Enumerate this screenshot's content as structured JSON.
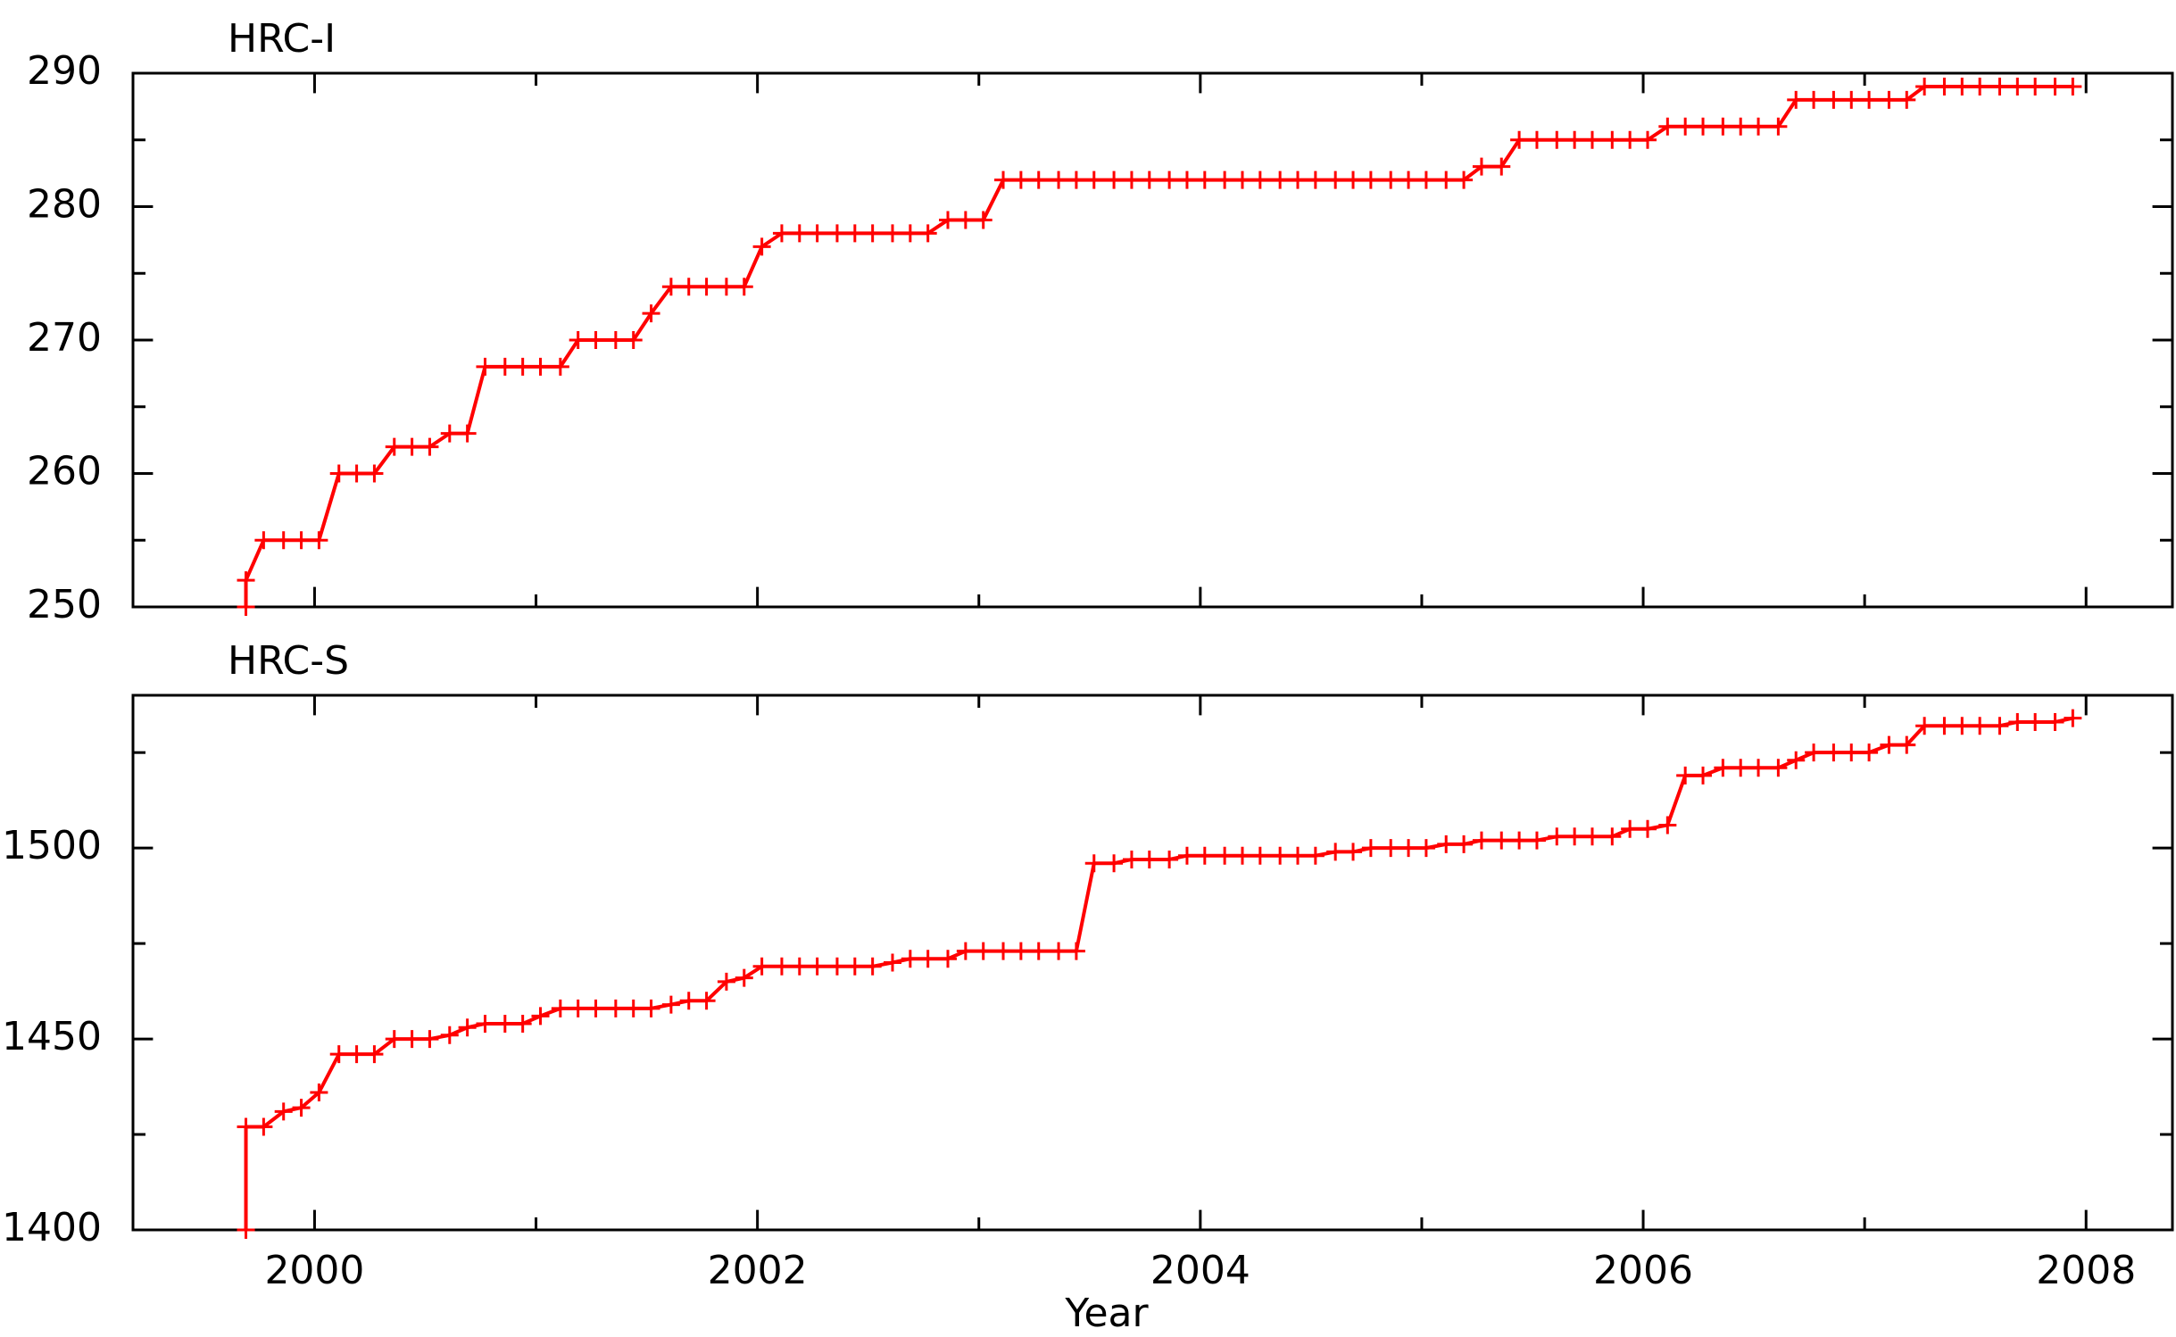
{
  "chart_data": {
    "type": "line",
    "xlabel": "Year",
    "xlim": [
      1999.18,
      2008.39
    ],
    "xticks": [
      2000,
      2002,
      2004,
      2006,
      2008
    ],
    "x": [
      1999.69,
      1999.69,
      1999.77,
      1999.86,
      1999.94,
      2000.02,
      2000.11,
      2000.19,
      2000.27,
      2000.36,
      2000.44,
      2000.52,
      2000.61,
      2000.69,
      2000.77,
      2000.86,
      2000.94,
      2001.02,
      2001.11,
      2001.19,
      2001.27,
      2001.36,
      2001.44,
      2001.52,
      2001.61,
      2001.69,
      2001.77,
      2001.86,
      2001.94,
      2002.02,
      2002.11,
      2002.19,
      2002.27,
      2002.36,
      2002.44,
      2002.52,
      2002.61,
      2002.69,
      2002.77,
      2002.86,
      2002.94,
      2003.02,
      2003.11,
      2003.19,
      2003.27,
      2003.36,
      2003.44,
      2003.52,
      2003.61,
      2003.69,
      2003.77,
      2003.86,
      2003.94,
      2004.02,
      2004.11,
      2004.19,
      2004.27,
      2004.36,
      2004.44,
      2004.52,
      2004.61,
      2004.69,
      2004.77,
      2004.86,
      2004.94,
      2005.02,
      2005.11,
      2005.19,
      2005.27,
      2005.36,
      2005.44,
      2005.52,
      2005.61,
      2005.69,
      2005.77,
      2005.86,
      2005.94,
      2006.02,
      2006.11,
      2006.19,
      2006.27,
      2006.36,
      2006.44,
      2006.52,
      2006.61,
      2006.69,
      2006.77,
      2006.86,
      2006.94,
      2007.02,
      2007.11,
      2007.19,
      2007.27,
      2007.36,
      2007.44,
      2007.52,
      2007.61,
      2007.69,
      2007.77,
      2007.86,
      2007.94
    ],
    "panels": [
      {
        "title": "HRC-I",
        "ylim": [
          250,
          290
        ],
        "yticks": [
          250,
          260,
          270,
          280,
          290
        ],
        "color": "#ff0000",
        "values": [
          250,
          252,
          255,
          255,
          255,
          255,
          260,
          260,
          260,
          262,
          262,
          262,
          263,
          263,
          268,
          268,
          268,
          268,
          268,
          270,
          270,
          270,
          270,
          272,
          274,
          274,
          274,
          274,
          274,
          277,
          278,
          278,
          278,
          278,
          278,
          278,
          278,
          278,
          278,
          279,
          279,
          279,
          282,
          282,
          282,
          282,
          282,
          282,
          282,
          282,
          282,
          282,
          282,
          282,
          282,
          282,
          282,
          282,
          282,
          282,
          282,
          282,
          282,
          282,
          282,
          282,
          282,
          282,
          283,
          283,
          285,
          285,
          285,
          285,
          285,
          285,
          285,
          285,
          286,
          286,
          286,
          286,
          286,
          286,
          286,
          288,
          288,
          288,
          288,
          288,
          288,
          288,
          289,
          289,
          289,
          289,
          289,
          289,
          289,
          289,
          289
        ]
      },
      {
        "title": "HRC-S",
        "ylim": [
          1400,
          1540
        ],
        "yticks": [
          1400,
          1450,
          1500
        ],
        "color": "#ff0000",
        "values": [
          1400,
          1427,
          1427,
          1431,
          1432,
          1436,
          1446,
          1446,
          1446,
          1450,
          1450,
          1450,
          1451,
          1453,
          1454,
          1454,
          1454,
          1456,
          1458,
          1458,
          1458,
          1458,
          1458,
          1458,
          1459,
          1460,
          1460,
          1465,
          1466,
          1469,
          1469,
          1469,
          1469,
          1469,
          1469,
          1469,
          1470,
          1471,
          1471,
          1471,
          1473,
          1473,
          1473,
          1473,
          1473,
          1473,
          1473,
          1496,
          1496,
          1497,
          1497,
          1497,
          1498,
          1498,
          1498,
          1498,
          1498,
          1498,
          1498,
          1498,
          1499,
          1499,
          1500,
          1500,
          1500,
          1500,
          1501,
          1501,
          1502,
          1502,
          1502,
          1502,
          1503,
          1503,
          1503,
          1503,
          1505,
          1505,
          1506,
          1519,
          1519,
          1521,
          1521,
          1521,
          1521,
          1523,
          1525,
          1525,
          1525,
          1525,
          1527,
          1527,
          1532,
          1532,
          1532,
          1532,
          1532,
          1533,
          1533,
          1533,
          1534
        ]
      }
    ]
  }
}
